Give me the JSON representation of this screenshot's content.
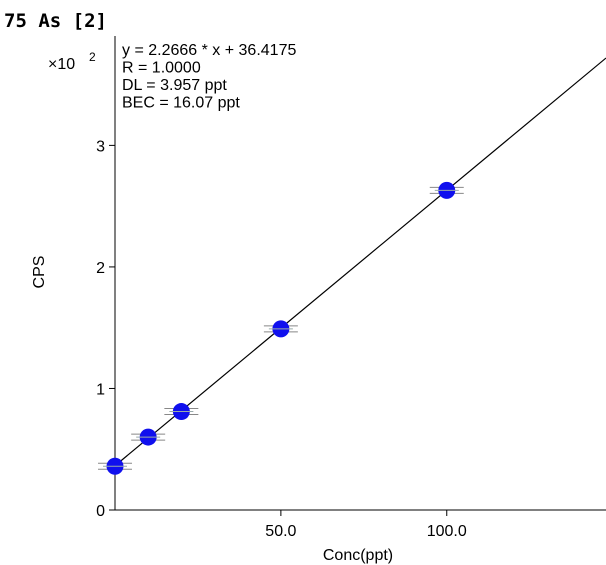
{
  "chart_data": {
    "type": "scatter",
    "title": "75 As [2]",
    "xlabel": "Conc(ppt)",
    "ylabel": "CPS",
    "y_multiplier_label": "×10",
    "y_multiplier_exponent": "2",
    "xlim": [
      0,
      148
    ],
    "ylim": [
      0,
      3.9
    ],
    "x_ticks": [
      {
        "value": 50,
        "label": "50.0"
      },
      {
        "value": 100,
        "label": "100.0"
      }
    ],
    "y_ticks": [
      {
        "value": 0,
        "label": "0"
      },
      {
        "value": 1,
        "label": "1"
      },
      {
        "value": 2,
        "label": "2"
      },
      {
        "value": 3,
        "label": "3"
      }
    ],
    "annotations": [
      "y = 2.2666 * x  + 36.4175",
      "R =  1.0000",
      "DL = 3.957 ppt",
      "BEC = 16.07 ppt"
    ],
    "fit_line": {
      "slope": 0.022666,
      "intercept": 0.364175
    },
    "points": [
      {
        "x": 0,
        "y": 0.36
      },
      {
        "x": 10,
        "y": 0.6
      },
      {
        "x": 20,
        "y": 0.81
      },
      {
        "x": 50,
        "y": 1.49
      },
      {
        "x": 100,
        "y": 2.63
      }
    ],
    "point_color": "#1010ee",
    "line_color": "#000000"
  }
}
